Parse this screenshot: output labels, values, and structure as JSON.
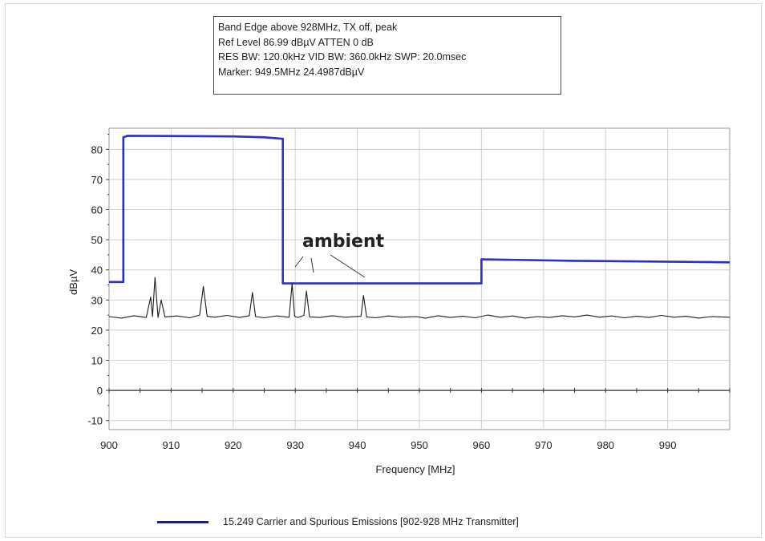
{
  "info": {
    "line1": "Band Edge above 928MHz, TX off, peak",
    "line2": "Ref Level 86.99 dBµV    ATTEN 0 dB",
    "line3": "RES BW: 120.0kHz  VID BW: 360.0kHz  SWP: 20.0msec",
    "line4": "Marker: 949.5MHz  24.4987dBµV"
  },
  "legend": {
    "label": "15.249 Carrier and Spurious Emissions [902-928 MHz Transmitter]"
  },
  "colors": {
    "limit_line": "#2e2ec8",
    "trace": "#1e1e1e",
    "legend_swatch": "#1f1f7a",
    "grid": "#cfcfcf"
  },
  "chart_data": {
    "type": "line",
    "xlabel": "Frequency [MHz]",
    "ylabel": "dBµV",
    "xlim": [
      900,
      1000
    ],
    "ylim": [
      -13,
      87
    ],
    "x_ticks": [
      900,
      910,
      920,
      930,
      940,
      950,
      960,
      970,
      980,
      990
    ],
    "y_ticks": [
      -10,
      0,
      10,
      20,
      30,
      40,
      50,
      60,
      70,
      80
    ],
    "grid": true,
    "annotation": "ambient",
    "series": [
      {
        "name": "15.249 Carrier and Spurious Emissions [902-928 MHz Transmitter]",
        "style": "limit",
        "x": [
          900,
          902.3,
          902.3,
          903,
          920,
          925,
          928,
          928,
          960,
          960,
          975,
          1000
        ],
        "y": [
          36,
          36,
          84,
          84.5,
          84.3,
          84,
          83.5,
          35.5,
          35.5,
          43.5,
          43,
          42.5
        ]
      },
      {
        "style": "measured",
        "x": [
          900,
          902,
          904,
          906,
          906.7,
          907,
          907.4,
          907.9,
          908.4,
          909,
          911,
          913,
          914.6,
          915.2,
          915.8,
          917,
          919,
          921,
          922.6,
          923.1,
          923.6,
          925,
          927,
          929,
          929.5,
          929.9,
          930.4,
          931.4,
          931.8,
          932.3,
          934,
          936,
          938,
          940.6,
          941,
          941.5,
          943,
          945,
          947,
          949.5,
          951,
          953,
          955,
          957,
          959,
          961,
          963,
          965,
          967,
          969,
          971,
          973,
          975,
          977,
          979,
          981,
          983,
          985,
          987,
          989,
          991,
          993,
          995,
          997,
          1000
        ],
        "y": [
          24.5,
          24,
          24.8,
          24.2,
          31,
          24.5,
          37.5,
          24.2,
          30,
          24.4,
          24.7,
          24.1,
          25,
          34.5,
          24.6,
          24.3,
          24.9,
          24.2,
          24.8,
          32.5,
          24.5,
          24.1,
          24.7,
          24.3,
          35.5,
          24.6,
          24.2,
          24.9,
          33,
          24.4,
          24.2,
          24.8,
          24.3,
          24.6,
          31.5,
          24.4,
          24.1,
          24.7,
          24.3,
          24.5,
          24,
          24.8,
          24.2,
          24.6,
          24.1,
          25,
          24.3,
          24.7,
          24,
          24.5,
          24.2,
          24.8,
          24.4,
          25,
          24.3,
          24.7,
          24.1,
          24.6,
          24.2,
          24.9,
          24.3,
          24.6,
          24,
          24.5,
          24.3
        ]
      }
    ]
  }
}
